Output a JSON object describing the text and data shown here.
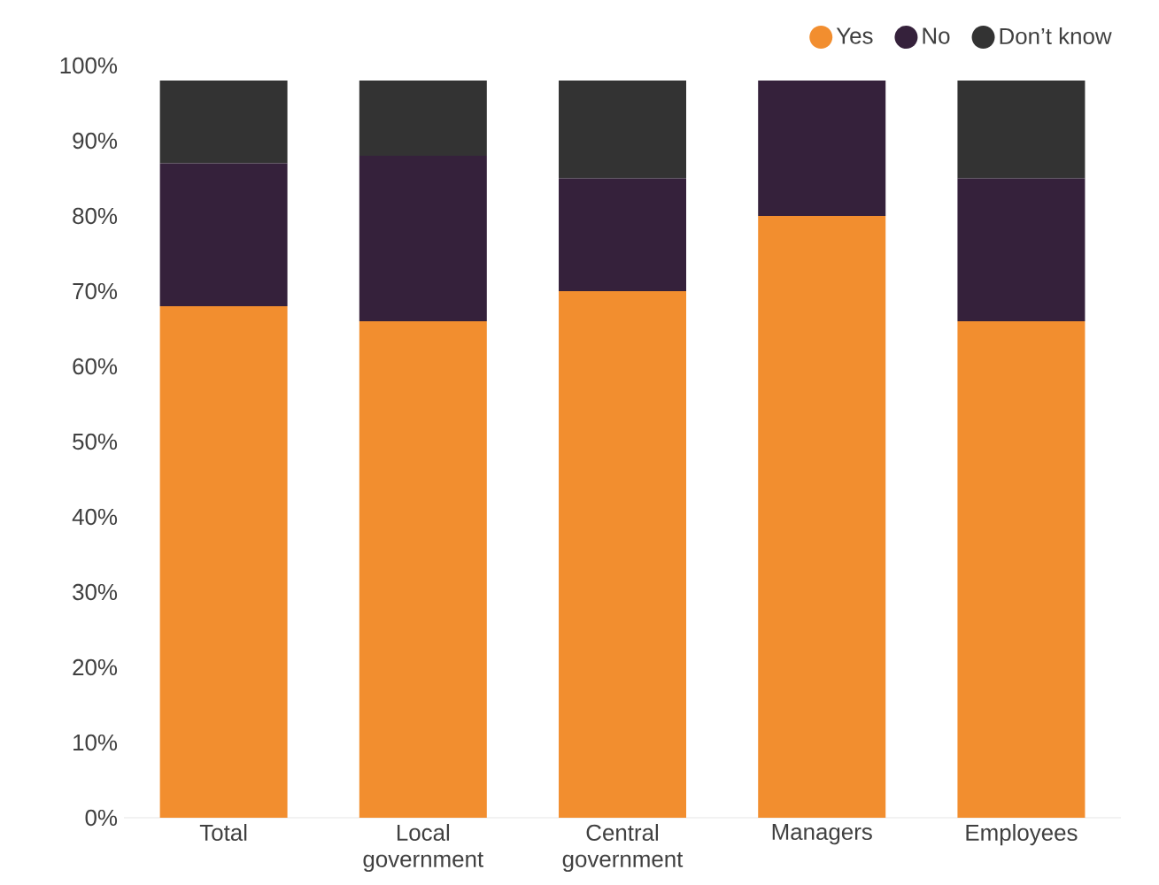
{
  "chart_data": {
    "type": "bar",
    "stacked": true,
    "categories": [
      "Total",
      "Local government",
      "Central government",
      "Managers",
      "Employees"
    ],
    "series": [
      {
        "name": "Yes",
        "color": "#f28e2f",
        "values": [
          68,
          66,
          70,
          80,
          66
        ]
      },
      {
        "name": "No",
        "color": "#35213b",
        "values": [
          19,
          22,
          15,
          18,
          19
        ]
      },
      {
        "name": "Don’t know",
        "color": "#333333",
        "values": [
          11,
          10,
          13,
          0,
          13
        ]
      }
    ],
    "ylim": [
      0,
      100
    ],
    "yticks": [
      {
        "value": 0,
        "label": "0%"
      },
      {
        "value": 10,
        "label": "10%"
      },
      {
        "value": 20,
        "label": "20%"
      },
      {
        "value": 30,
        "label": "30%"
      },
      {
        "value": 40,
        "label": "40%"
      },
      {
        "value": 50,
        "label": "50%"
      },
      {
        "value": 60,
        "label": "60%"
      },
      {
        "value": 70,
        "label": "70%"
      },
      {
        "value": 80,
        "label": "80%"
      },
      {
        "value": 90,
        "label": "90%"
      },
      {
        "value": 100,
        "label": "100%"
      }
    ],
    "legend": "top right",
    "marker": "circle",
    "grid": false
  }
}
